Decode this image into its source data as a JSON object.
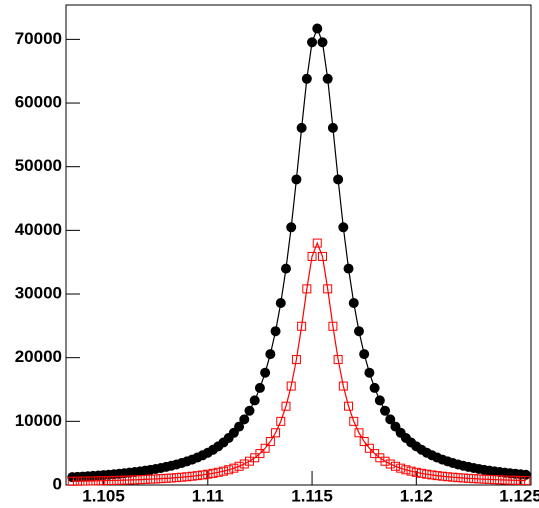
{
  "chart_data": {
    "type": "scatter",
    "x": [
      1.1035,
      1.10375,
      1.104,
      1.10425,
      1.1045,
      1.10475,
      1.105,
      1.10525,
      1.1055,
      1.10575,
      1.106,
      1.10625,
      1.1065,
      1.10675,
      1.107,
      1.10725,
      1.1075,
      1.10775,
      1.108,
      1.10825,
      1.1085,
      1.10875,
      1.109,
      1.10925,
      1.1095,
      1.10975,
      1.11,
      1.11025,
      1.1105,
      1.11075,
      1.111,
      1.11125,
      1.1115,
      1.11175,
      1.112,
      1.11225,
      1.1125,
      1.11275,
      1.113,
      1.11325,
      1.1135,
      1.11375,
      1.114,
      1.11425,
      1.1145,
      1.11475,
      1.115,
      1.11525,
      1.1155,
      1.11575,
      1.116,
      1.11625,
      1.1165,
      1.11675,
      1.117,
      1.11725,
      1.1175,
      1.11775,
      1.118,
      1.11825,
      1.1185,
      1.11875,
      1.119,
      1.11925,
      1.1195,
      1.11975,
      1.12,
      1.12025,
      1.1205,
      1.12075,
      1.121,
      1.12125,
      1.1215,
      1.12175,
      1.122,
      1.12225,
      1.1225,
      1.12275,
      1.123,
      1.12325,
      1.1235,
      1.12375,
      1.124,
      1.12425,
      1.1245,
      1.12475,
      1.125,
      1.12525
    ],
    "series": [
      {
        "color": "#000000",
        "marker": "circle",
        "values": [
          1229,
          1274,
          1321,
          1372,
          1426,
          1484,
          1546,
          1613,
          1685,
          1762,
          1846,
          1937,
          2035,
          2141,
          2257,
          2384,
          2522,
          2674,
          2841,
          3026,
          3230,
          3457,
          3709,
          3992,
          4310,
          4668,
          5074,
          5536,
          6065,
          6674,
          7380,
          8202,
          9166,
          10305,
          11661,
          13286,
          15250,
          17640,
          20565,
          24160,
          28585,
          33990,
          40480,
          47995,
          56100,
          63810,
          69550,
          71700,
          69550,
          63810,
          56100,
          47995,
          40480,
          33990,
          28585,
          24160,
          20565,
          17640,
          15250,
          13286,
          11661,
          10305,
          9166,
          8202,
          7380,
          6674,
          6065,
          5536,
          5074,
          4668,
          4310,
          3992,
          3709,
          3457,
          3230,
          3026,
          2841,
          2674,
          2522,
          2384,
          2257,
          2141,
          2035,
          1937,
          1846,
          1762,
          1685,
          1613
        ]
      },
      {
        "color": "#ff0000",
        "marker": "open-square",
        "values": [
          587,
          600,
          613,
          628,
          643,
          659,
          677,
          696,
          716,
          738,
          762,
          787,
          815,
          845,
          878,
          915,
          954,
          998,
          1046,
          1099,
          1158,
          1223,
          1297,
          1379,
          1472,
          1577,
          1697,
          1834,
          1993,
          2176,
          2391,
          2644,
          2944,
          3304,
          3740,
          4274,
          4937,
          5770,
          6830,
          8200,
          9998,
          12378,
          15543,
          19704,
          24935,
          30810,
          35900,
          38000,
          35900,
          30810,
          24935,
          19704,
          15543,
          12378,
          9998,
          8200,
          6830,
          5770,
          4937,
          4274,
          3740,
          3304,
          2944,
          2644,
          2391,
          2176,
          1993,
          1834,
          1697,
          1577,
          1472,
          1379,
          1297,
          1223,
          1158,
          1099,
          1046,
          998,
          954,
          915,
          878,
          845,
          815,
          787,
          762,
          738,
          716,
          696
        ]
      }
    ],
    "xlim": [
      1.1032,
      1.1255
    ],
    "xticks": [
      1.105,
      1.11,
      1.115,
      1.12,
      1.125
    ],
    "ylim": [
      0,
      75400
    ],
    "yticks": [
      0,
      10000,
      20000,
      30000,
      40000,
      50000,
      60000,
      70000
    ]
  }
}
